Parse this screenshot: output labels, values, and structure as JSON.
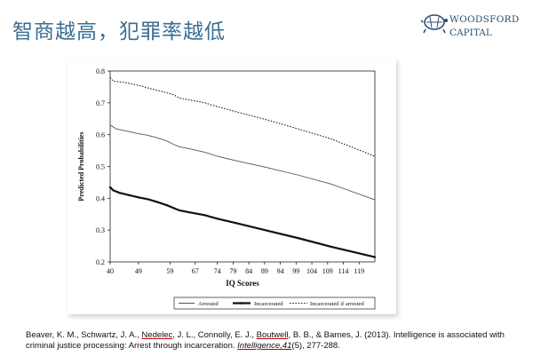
{
  "slide": {
    "title": "智商越高，犯罪率越低"
  },
  "logo": {
    "line1": "WOODSFORD",
    "line2": "CAPITAL",
    "icon": "tortoise-icon",
    "color": "#2a4f6e"
  },
  "citation": {
    "part1": "Beaver, K. M., Schwartz, J. A., ",
    "name1": "Nedelec",
    "part2": ", J. L., Connolly, E. J., ",
    "name2": "Boutwell",
    "part3": ", B. B., & Barnes, J. (2013). Intelligence is associated with criminal justice processing: Arrest through incarceration. ",
    "journal": "Intelligence,41",
    "part4": "(5), 277-288."
  },
  "chart_data": {
    "type": "line",
    "title": "",
    "xlabel": "IQ Scores",
    "ylabel": "Predicted Probabilities",
    "xlim": [
      40,
      124
    ],
    "ylim": [
      0.2,
      0.8
    ],
    "xticks": [
      40,
      49,
      59,
      67,
      74,
      79,
      84,
      89,
      94,
      99,
      104,
      109,
      114,
      119
    ],
    "yticks": [
      0.2,
      0.3,
      0.4,
      0.5,
      0.6,
      0.7,
      0.8
    ],
    "grid": false,
    "legend_position": "bottom",
    "series": [
      {
        "name": "Arrested",
        "style": "solid",
        "x": [
          40,
          42,
          45,
          49,
          52,
          55,
          58,
          60,
          62,
          65,
          70,
          74,
          80,
          90,
          100,
          110,
          124
        ],
        "y": [
          0.63,
          0.618,
          0.612,
          0.603,
          0.598,
          0.59,
          0.58,
          0.57,
          0.562,
          0.556,
          0.545,
          0.532,
          0.518,
          0.496,
          0.472,
          0.445,
          0.395
        ]
      },
      {
        "name": "Incarcerated",
        "style": "solid-marker",
        "x": [
          40,
          41,
          43,
          46,
          49,
          52,
          55,
          58,
          60,
          62,
          65,
          70,
          74,
          80,
          90,
          100,
          110,
          124
        ],
        "y": [
          0.435,
          0.425,
          0.417,
          0.41,
          0.403,
          0.397,
          0.388,
          0.378,
          0.37,
          0.362,
          0.356,
          0.347,
          0.336,
          0.322,
          0.298,
          0.274,
          0.248,
          0.215
        ]
      },
      {
        "name": "Incarcerated if arrested",
        "style": "dotted",
        "x": [
          40,
          41,
          44,
          49,
          53,
          56,
          60,
          62,
          66,
          70,
          74,
          80,
          90,
          100,
          110,
          124
        ],
        "y": [
          0.78,
          0.768,
          0.765,
          0.755,
          0.744,
          0.737,
          0.726,
          0.715,
          0.708,
          0.7,
          0.688,
          0.672,
          0.646,
          0.617,
          0.587,
          0.532
        ]
      }
    ]
  }
}
